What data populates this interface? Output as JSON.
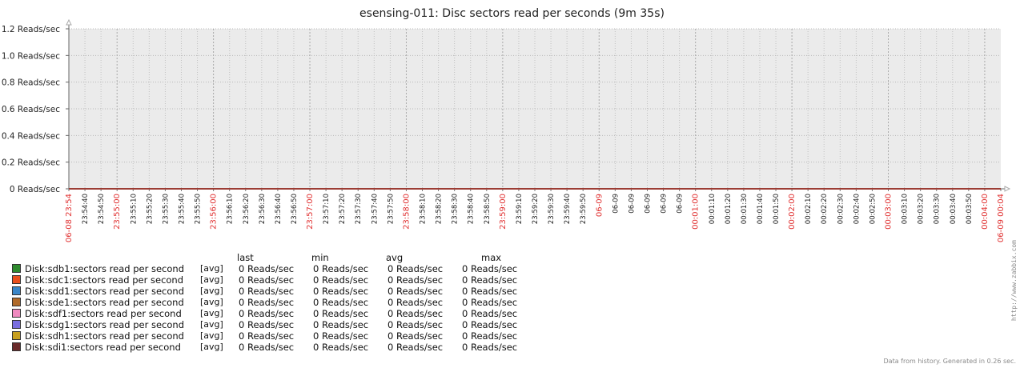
{
  "title": "esensing-011: Disc sectors read per seconds (9m 35s)",
  "chart_data": {
    "type": "line",
    "title": "esensing-011: Disc sectors read per seconds (9m 35s)",
    "ylim": [
      0,
      1.2
    ],
    "yticks": [
      "0 Reads/sec",
      "0.2 Reads/sec",
      "0.4 Reads/sec",
      "0.6 Reads/sec",
      "0.8 Reads/sec",
      "1.0 Reads/sec",
      "1.2 Reads/sec"
    ],
    "xticks": [
      {
        "label": "06-08 23:54",
        "red": true
      },
      {
        "label": "23:54:40",
        "red": false
      },
      {
        "label": "23:54:50",
        "red": false
      },
      {
        "label": "23:55:00",
        "red": true
      },
      {
        "label": "23:55:10",
        "red": false
      },
      {
        "label": "23:55:20",
        "red": false
      },
      {
        "label": "23:55:30",
        "red": false
      },
      {
        "label": "23:55:40",
        "red": false
      },
      {
        "label": "23:55:50",
        "red": false
      },
      {
        "label": "23:56:00",
        "red": true
      },
      {
        "label": "23:56:10",
        "red": false
      },
      {
        "label": "23:56:20",
        "red": false
      },
      {
        "label": "23:56:30",
        "red": false
      },
      {
        "label": "23:56:40",
        "red": false
      },
      {
        "label": "23:56:50",
        "red": false
      },
      {
        "label": "23:57:00",
        "red": true
      },
      {
        "label": "23:57:10",
        "red": false
      },
      {
        "label": "23:57:20",
        "red": false
      },
      {
        "label": "23:57:30",
        "red": false
      },
      {
        "label": "23:57:40",
        "red": false
      },
      {
        "label": "23:57:50",
        "red": false
      },
      {
        "label": "23:58:00",
        "red": true
      },
      {
        "label": "23:58:10",
        "red": false
      },
      {
        "label": "23:58:20",
        "red": false
      },
      {
        "label": "23:58:30",
        "red": false
      },
      {
        "label": "23:58:40",
        "red": false
      },
      {
        "label": "23:58:50",
        "red": false
      },
      {
        "label": "23:59:00",
        "red": true
      },
      {
        "label": "23:59:10",
        "red": false
      },
      {
        "label": "23:59:20",
        "red": false
      },
      {
        "label": "23:59:30",
        "red": false
      },
      {
        "label": "23:59:40",
        "red": false
      },
      {
        "label": "23:59:50",
        "red": false
      },
      {
        "label": "06-09",
        "red": true
      },
      {
        "label": "06-09",
        "red": false
      },
      {
        "label": "06-09",
        "red": false
      },
      {
        "label": "06-09",
        "red": false
      },
      {
        "label": "06-09",
        "red": false
      },
      {
        "label": "06-09",
        "red": false
      },
      {
        "label": "00:01:00",
        "red": true
      },
      {
        "label": "00:01:10",
        "red": false
      },
      {
        "label": "00:01:20",
        "red": false
      },
      {
        "label": "00:01:30",
        "red": false
      },
      {
        "label": "00:01:40",
        "red": false
      },
      {
        "label": "00:01:50",
        "red": false
      },
      {
        "label": "00:02:00",
        "red": true
      },
      {
        "label": "00:02:10",
        "red": false
      },
      {
        "label": "00:02:20",
        "red": false
      },
      {
        "label": "00:02:30",
        "red": false
      },
      {
        "label": "00:02:40",
        "red": false
      },
      {
        "label": "00:02:50",
        "red": false
      },
      {
        "label": "00:03:00",
        "red": true
      },
      {
        "label": "00:03:10",
        "red": false
      },
      {
        "label": "00:03:20",
        "red": false
      },
      {
        "label": "00:03:30",
        "red": false
      },
      {
        "label": "00:03:40",
        "red": false
      },
      {
        "label": "00:03:50",
        "red": false
      },
      {
        "label": "00:04:00",
        "red": true
      },
      {
        "label": "06-09 00:04",
        "red": true
      }
    ],
    "series": [
      {
        "name": "Disk:sdb1:sectors read per second",
        "color": "#2e8b2e",
        "values": [
          0,
          0
        ]
      },
      {
        "name": "Disk:sdc1:sectors read per second",
        "color": "#e8501e",
        "values": [
          0,
          0
        ]
      },
      {
        "name": "Disk:sdd1:sectors read per second",
        "color": "#3a86c8",
        "values": [
          0,
          0
        ]
      },
      {
        "name": "Disk:sde1:sectors read per second",
        "color": "#b06a2a",
        "values": [
          0,
          0
        ]
      },
      {
        "name": "Disk:sdf1:sectors read per second",
        "color": "#f08ac0",
        "values": [
          0,
          0
        ]
      },
      {
        "name": "Disk:sdg1:sectors read per second",
        "color": "#7a6ee0",
        "values": [
          0,
          0
        ]
      },
      {
        "name": "Disk:sdh1:sectors read per second",
        "color": "#c8a020",
        "values": [
          0,
          0
        ]
      },
      {
        "name": "Disk:sdi1:sectors read per second",
        "color": "#6a2a2a",
        "values": [
          0,
          0
        ]
      }
    ],
    "grid": true
  },
  "legend": {
    "headers": {
      "last": "last",
      "min": "min",
      "avg": "avg",
      "max": "max"
    },
    "rows": [
      {
        "name": "Disk:sdb1:sectors read per second",
        "fn": "[avg]",
        "last": "0 Reads/sec",
        "min": "0 Reads/sec",
        "avg": "0 Reads/sec",
        "max": "0 Reads/sec"
      },
      {
        "name": "Disk:sdc1:sectors read per second",
        "fn": "[avg]",
        "last": "0 Reads/sec",
        "min": "0 Reads/sec",
        "avg": "0 Reads/sec",
        "max": "0 Reads/sec"
      },
      {
        "name": "Disk:sdd1:sectors read per second",
        "fn": "[avg]",
        "last": "0 Reads/sec",
        "min": "0 Reads/sec",
        "avg": "0 Reads/sec",
        "max": "0 Reads/sec"
      },
      {
        "name": "Disk:sde1:sectors read per second",
        "fn": "[avg]",
        "last": "0 Reads/sec",
        "min": "0 Reads/sec",
        "avg": "0 Reads/sec",
        "max": "0 Reads/sec"
      },
      {
        "name": "Disk:sdf1:sectors read per second",
        "fn": "[avg]",
        "last": "0 Reads/sec",
        "min": "0 Reads/sec",
        "avg": "0 Reads/sec",
        "max": "0 Reads/sec"
      },
      {
        "name": "Disk:sdg1:sectors read per second",
        "fn": "[avg]",
        "last": "0 Reads/sec",
        "min": "0 Reads/sec",
        "avg": "0 Reads/sec",
        "max": "0 Reads/sec"
      },
      {
        "name": "Disk:sdh1:sectors read per second",
        "fn": "[avg]",
        "last": "0 Reads/sec",
        "min": "0 Reads/sec",
        "avg": "0 Reads/sec",
        "max": "0 Reads/sec"
      },
      {
        "name": "Disk:sdi1:sectors read per second",
        "fn": "[avg]",
        "last": "0 Reads/sec",
        "min": "0 Reads/sec",
        "avg": "0 Reads/sec",
        "max": "0 Reads/sec"
      }
    ]
  },
  "side_credit": "http://www.zabbix.com",
  "footer": "Data from history. Generated in 0.26 sec."
}
